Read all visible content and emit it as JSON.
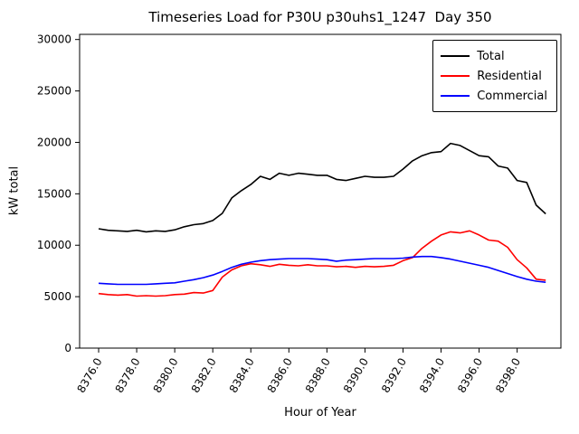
{
  "title": "Timeseries Load for P30U p30uhs1_1247  Day 350",
  "chart_data": {
    "type": "line",
    "title": "Timeseries Load for P30U p30uhs1_1247  Day 350",
    "xlabel": "Hour of Year",
    "ylabel": "kW total",
    "xlim": [
      8375.0,
      8400.3
    ],
    "ylim": [
      0,
      30500
    ],
    "xticks": [
      8376,
      8378,
      8380,
      8382,
      8384,
      8386,
      8388,
      8390,
      8392,
      8394,
      8396,
      8398
    ],
    "xtick_labels": [
      "8376.0",
      "8378.0",
      "8380.0",
      "8382.0",
      "8384.0",
      "8386.0",
      "8388.0",
      "8390.0",
      "8392.0",
      "8394.0",
      "8396.0",
      "8398.0"
    ],
    "yticks": [
      0,
      5000,
      10000,
      15000,
      20000,
      25000,
      30000
    ],
    "ytick_labels": [
      "0",
      "5000",
      "10000",
      "15000",
      "20000",
      "25000",
      "30000"
    ],
    "grid": false,
    "legend_position": "upper right",
    "x": [
      8376.0,
      8376.5,
      8377.0,
      8377.5,
      8378.0,
      8378.5,
      8379.0,
      8379.5,
      8380.0,
      8380.5,
      8381.0,
      8381.5,
      8382.0,
      8382.5,
      8383.0,
      8383.5,
      8384.0,
      8384.5,
      8385.0,
      8385.5,
      8386.0,
      8386.5,
      8387.0,
      8387.5,
      8388.0,
      8388.5,
      8389.0,
      8389.5,
      8390.0,
      8390.5,
      8391.0,
      8391.5,
      8392.0,
      8392.5,
      8393.0,
      8393.5,
      8394.0,
      8394.5,
      8395.0,
      8395.5,
      8396.0,
      8396.5,
      8397.0,
      8397.5,
      8398.0,
      8398.5,
      8399.0,
      8399.5
    ],
    "series": [
      {
        "name": "Total",
        "color": "#000000",
        "values": [
          11600,
          11450,
          11400,
          11350,
          11450,
          11300,
          11400,
          11350,
          11500,
          11800,
          12000,
          12100,
          12400,
          13100,
          14600,
          15300,
          15900,
          16700,
          16400,
          17000,
          16800,
          17000,
          16900,
          16800,
          16800,
          16400,
          16300,
          16500,
          16700,
          16600,
          16600,
          16700,
          17400,
          18200,
          18700,
          19000,
          19100,
          19900,
          19700,
          19200,
          18700,
          18600,
          17700,
          17500,
          16300,
          16100,
          13900,
          13050
        ]
      },
      {
        "name": "Residential",
        "color": "#ff0000",
        "values": [
          5300,
          5200,
          5150,
          5200,
          5050,
          5100,
          5050,
          5100,
          5200,
          5250,
          5400,
          5350,
          5600,
          6900,
          7600,
          8000,
          8200,
          8100,
          7950,
          8150,
          8050,
          8000,
          8100,
          8000,
          8000,
          7900,
          7950,
          7850,
          7950,
          7900,
          7950,
          8050,
          8500,
          8800,
          9700,
          10400,
          11000,
          11300,
          11200,
          11400,
          11000,
          10500,
          10400,
          9800,
          8600,
          7800,
          6700,
          6600
        ]
      },
      {
        "name": "Commercial",
        "color": "#0000ff",
        "values": [
          6300,
          6250,
          6200,
          6200,
          6200,
          6200,
          6250,
          6300,
          6350,
          6500,
          6650,
          6850,
          7100,
          7450,
          7850,
          8150,
          8350,
          8500,
          8600,
          8650,
          8700,
          8700,
          8700,
          8650,
          8600,
          8450,
          8550,
          8600,
          8650,
          8700,
          8700,
          8700,
          8750,
          8850,
          8900,
          8900,
          8800,
          8650,
          8450,
          8250,
          8050,
          7850,
          7550,
          7250,
          6950,
          6700,
          6500,
          6400
        ]
      }
    ]
  }
}
